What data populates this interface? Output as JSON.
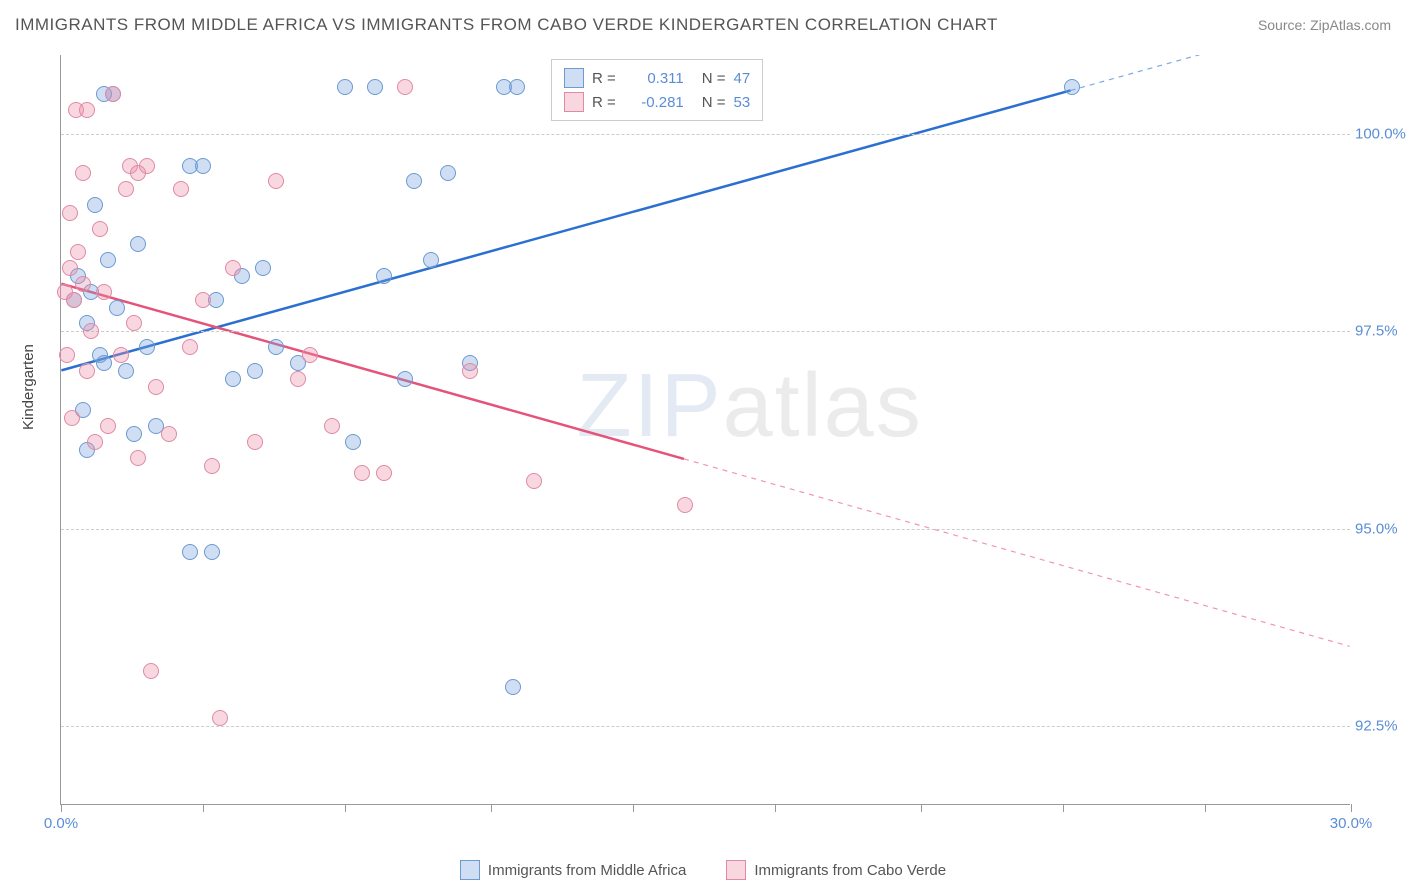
{
  "title": "IMMIGRANTS FROM MIDDLE AFRICA VS IMMIGRANTS FROM CABO VERDE KINDERGARTEN CORRELATION CHART",
  "source": "Source: ZipAtlas.com",
  "ylabel": "Kindergarten",
  "watermark_a": "ZIP",
  "watermark_b": "atlas",
  "chart": {
    "type": "scatter",
    "xlim": [
      0,
      30
    ],
    "ylim": [
      91.5,
      101.0
    ],
    "x_ticks": [
      0,
      3.3,
      6.6,
      10,
      13.3,
      16.6,
      20,
      23.3,
      26.6,
      30
    ],
    "x_tick_labels": {
      "0": "0.0%",
      "30": "30.0%"
    },
    "y_grid": [
      92.5,
      95.0,
      97.5,
      100.0
    ],
    "y_tick_labels": [
      "92.5%",
      "95.0%",
      "97.5%",
      "100.0%"
    ],
    "background_color": "#ffffff",
    "grid_color": "#cccccc",
    "axis_color": "#999999",
    "tick_label_color": "#5b8dd6",
    "series": [
      {
        "name": "Immigrants from Middle Africa",
        "color_fill": "rgba(120,160,220,0.35)",
        "color_stroke": "#6b9bd1",
        "line_color": "#2b6fd1",
        "r_value": "0.311",
        "n_value": "47",
        "points": [
          [
            0.3,
            97.9
          ],
          [
            0.4,
            98.2
          ],
          [
            0.6,
            97.6
          ],
          [
            0.7,
            98.0
          ],
          [
            0.8,
            99.1
          ],
          [
            0.9,
            97.2
          ],
          [
            1.0,
            97.1
          ],
          [
            1.1,
            98.4
          ],
          [
            1.2,
            100.5
          ],
          [
            1.3,
            97.8
          ],
          [
            1.5,
            97.0
          ],
          [
            1.7,
            96.2
          ],
          [
            1.8,
            98.6
          ],
          [
            2.0,
            97.3
          ],
          [
            2.2,
            96.3
          ],
          [
            3.0,
            99.6
          ],
          [
            3.0,
            94.7
          ],
          [
            3.5,
            94.7
          ],
          [
            3.6,
            97.9
          ],
          [
            4.0,
            96.9
          ],
          [
            4.2,
            98.2
          ],
          [
            4.5,
            97.0
          ],
          [
            4.7,
            98.3
          ],
          [
            5.0,
            97.3
          ],
          [
            5.5,
            97.1
          ],
          [
            6.6,
            100.6
          ],
          [
            7.3,
            100.6
          ],
          [
            7.5,
            98.2
          ],
          [
            8.0,
            96.9
          ],
          [
            8.2,
            99.4
          ],
          [
            8.6,
            98.4
          ],
          [
            9.0,
            99.5
          ],
          [
            9.5,
            97.1
          ],
          [
            10.3,
            100.6
          ],
          [
            10.6,
            100.6
          ],
          [
            10.5,
            93.0
          ],
          [
            6.8,
            96.1
          ],
          [
            1.0,
            100.5
          ],
          [
            0.5,
            96.5
          ],
          [
            0.6,
            96.0
          ],
          [
            23.5,
            100.6
          ],
          [
            3.3,
            99.6
          ]
        ],
        "trend": {
          "x1": 0,
          "y1": 97.0,
          "x2": 23.5,
          "y2": 100.55,
          "solid_until_x": 23.5,
          "dash_to_x": 30
        }
      },
      {
        "name": "Immigrants from Cabo Verde",
        "color_fill": "rgba(235,140,165,0.35)",
        "color_stroke": "#e08aa5",
        "line_color": "#e6537a",
        "r_value": "-0.281",
        "n_value": "53",
        "points": [
          [
            0.2,
            98.3
          ],
          [
            0.3,
            97.9
          ],
          [
            0.4,
            98.5
          ],
          [
            0.5,
            98.1
          ],
          [
            0.5,
            99.5
          ],
          [
            0.6,
            97.0
          ],
          [
            0.7,
            97.5
          ],
          [
            0.8,
            96.1
          ],
          [
            0.9,
            98.8
          ],
          [
            1.0,
            98.0
          ],
          [
            1.1,
            96.3
          ],
          [
            1.2,
            100.5
          ],
          [
            1.4,
            97.2
          ],
          [
            1.5,
            99.3
          ],
          [
            1.6,
            99.6
          ],
          [
            1.7,
            97.6
          ],
          [
            1.8,
            95.9
          ],
          [
            2.0,
            99.6
          ],
          [
            2.2,
            96.8
          ],
          [
            2.5,
            96.2
          ],
          [
            2.8,
            99.3
          ],
          [
            3.0,
            97.3
          ],
          [
            3.3,
            97.9
          ],
          [
            3.5,
            95.8
          ],
          [
            3.7,
            92.6
          ],
          [
            4.0,
            98.3
          ],
          [
            4.5,
            96.1
          ],
          [
            5.0,
            99.4
          ],
          [
            5.5,
            96.9
          ],
          [
            5.8,
            97.2
          ],
          [
            6.3,
            96.3
          ],
          [
            7.0,
            95.7
          ],
          [
            7.5,
            95.7
          ],
          [
            8.0,
            100.6
          ],
          [
            9.5,
            97.0
          ],
          [
            11.0,
            95.6
          ],
          [
            14.5,
            95.3
          ],
          [
            0.1,
            98.0
          ],
          [
            0.2,
            99.0
          ],
          [
            0.15,
            97.2
          ],
          [
            0.25,
            96.4
          ],
          [
            0.35,
            100.3
          ],
          [
            0.6,
            100.3
          ],
          [
            1.8,
            99.5
          ],
          [
            2.1,
            93.2
          ]
        ],
        "trend": {
          "x1": 0,
          "y1": 98.1,
          "x2": 30,
          "y2": 93.5,
          "solid_until_x": 14.5,
          "dash_to_x": 30
        }
      }
    ]
  },
  "stats_legend": {
    "label_r": "R =",
    "label_n": "N ="
  },
  "bottom_legend_labels": [
    "Immigrants from Middle Africa",
    "Immigrants from Cabo Verde"
  ]
}
